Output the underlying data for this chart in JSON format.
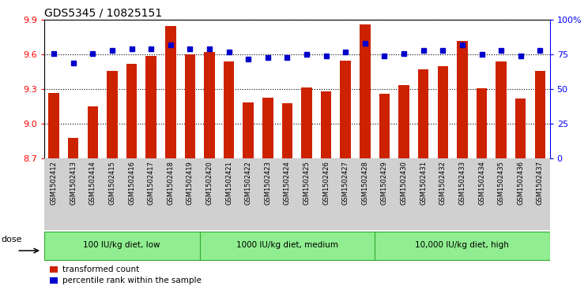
{
  "title": "GDS5345 / 10825151",
  "samples": [
    "GSM1502412",
    "GSM1502413",
    "GSM1502414",
    "GSM1502415",
    "GSM1502416",
    "GSM1502417",
    "GSM1502418",
    "GSM1502419",
    "GSM1502420",
    "GSM1502421",
    "GSM1502422",
    "GSM1502423",
    "GSM1502424",
    "GSM1502425",
    "GSM1502426",
    "GSM1502427",
    "GSM1502428",
    "GSM1502429",
    "GSM1502430",
    "GSM1502431",
    "GSM1502432",
    "GSM1502433",
    "GSM1502434",
    "GSM1502435",
    "GSM1502436",
    "GSM1502437"
  ],
  "bar_values": [
    9.27,
    8.88,
    9.15,
    9.46,
    9.52,
    9.59,
    9.85,
    9.6,
    9.62,
    9.54,
    9.19,
    9.23,
    9.18,
    9.32,
    9.28,
    9.55,
    9.86,
    9.26,
    9.34,
    9.47,
    9.5,
    9.72,
    9.31,
    9.54,
    9.22,
    9.46
  ],
  "percentile_values": [
    76,
    69,
    76,
    78,
    79,
    79,
    82,
    79,
    79,
    77,
    72,
    73,
    73,
    75,
    74,
    77,
    83,
    74,
    76,
    78,
    78,
    82,
    75,
    78,
    74,
    78
  ],
  "bar_color": "#cc2200",
  "percentile_color": "#0000cc",
  "ylim_left": [
    8.7,
    9.9
  ],
  "ylim_right": [
    0,
    100
  ],
  "yticks_left": [
    8.7,
    9.0,
    9.3,
    9.6,
    9.9
  ],
  "yticks_right": [
    0,
    25,
    50,
    75,
    100
  ],
  "ytick_labels_right": [
    "0",
    "25",
    "50",
    "75",
    "100%"
  ],
  "gridlines": [
    9.0,
    9.3,
    9.6,
    9.9
  ],
  "groups": [
    {
      "label": "100 IU/kg diet, low",
      "start": 0,
      "end": 7
    },
    {
      "label": "1000 IU/kg diet, medium",
      "start": 8,
      "end": 16
    },
    {
      "label": "10,000 IU/kg diet, high",
      "start": 17,
      "end": 25
    }
  ],
  "group_color": "#90ee90",
  "group_border_color": "#33aa33",
  "dose_label": "dose",
  "legend_items": [
    {
      "color": "#cc2200",
      "label": "transformed count"
    },
    {
      "color": "#0000cc",
      "label": "percentile rank within the sample"
    }
  ],
  "xtick_bg_color": "#d0d0d0",
  "bar_width": 0.55,
  "fig_width": 7.44,
  "fig_height": 3.63,
  "dpi": 100
}
